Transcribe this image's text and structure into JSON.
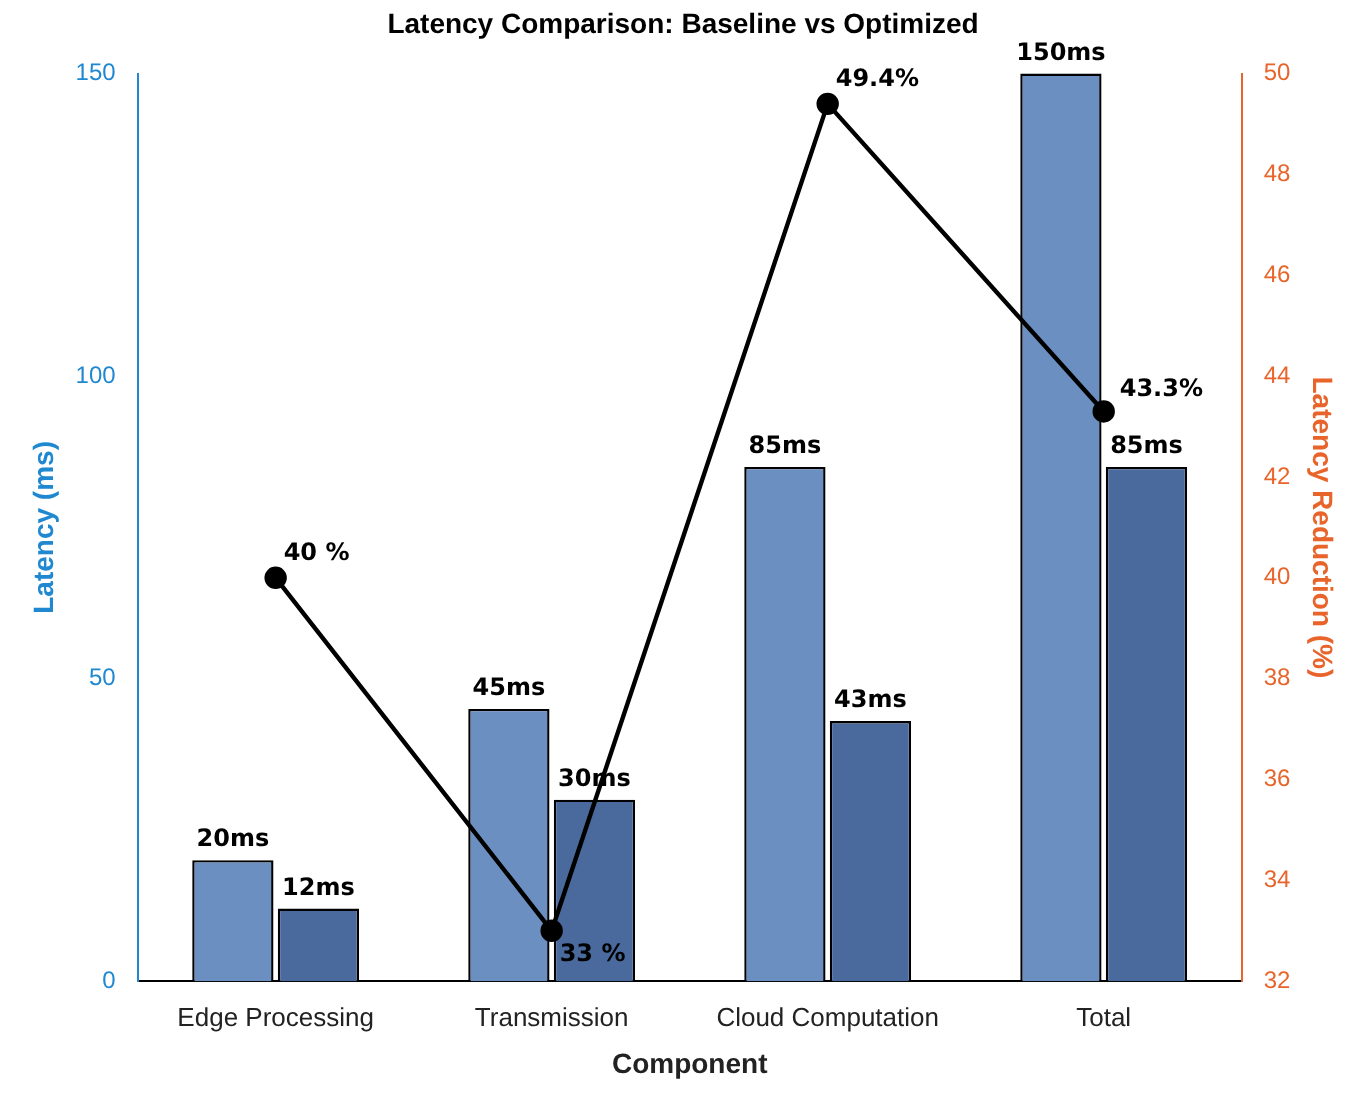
{
  "chart_data": {
    "type": "bar",
    "title": "Latency Comparison: Baseline vs Optimized",
    "xlabel": "Component",
    "ylabel": "Latency (ms)",
    "y2label": "Latency Reduction (%)",
    "categories": [
      "Edge Processing",
      "Transmission",
      "Cloud Computation",
      "Total"
    ],
    "series": [
      {
        "color": "#6a8fc0",
        "values": [
          20,
          45,
          85,
          150
        ],
        "value_labels": [
          "20ms",
          "45ms",
          "85ms",
          "150ms"
        ]
      },
      {
        "color": "#4a6a9e",
        "values": [
          12,
          30,
          43,
          85
        ],
        "value_labels": [
          "12ms",
          "30ms",
          "43ms",
          "85ms"
        ]
      },
      {
        "type": "line",
        "axis": "y2",
        "color": "#000000",
        "values": [
          40,
          33,
          49.4,
          43.3
        ],
        "value_labels": [
          "40 %",
          "33 %",
          "49.4%",
          "43.3%"
        ],
        "marker": "circle",
        "line_style": "solid"
      }
    ],
    "ylim": [
      0,
      150
    ],
    "yticks": [
      0,
      50,
      100,
      150
    ],
    "y2lim": [
      32,
      50
    ],
    "y2ticks": [
      32,
      34,
      36,
      38,
      40,
      42,
      44,
      46,
      48,
      50
    ],
    "grid": false,
    "legend": false
  }
}
